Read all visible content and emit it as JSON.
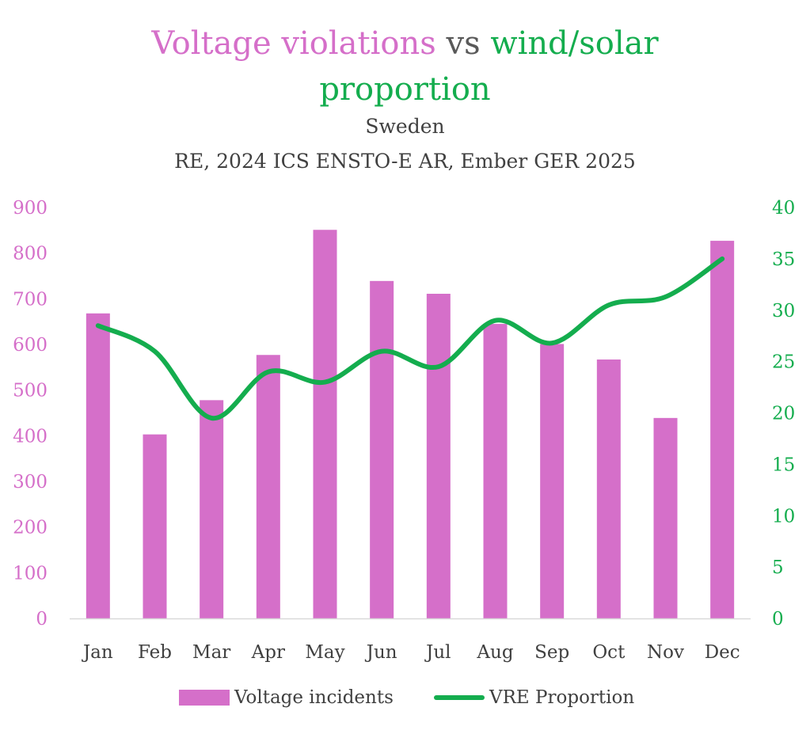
{
  "title": {
    "part1": "Voltage violations",
    "part2": "vs",
    "part3": "wind/solar",
    "part4": "proportion"
  },
  "subtitle_line1": "Sweden",
  "subtitle_line2": "RE, 2024 ICS ENSTO-E AR, Ember GER 2025",
  "colors": {
    "bar": "#d56fc9",
    "line": "#14ad4e",
    "left_axis": "#d56fc9",
    "right_axis": "#14ad4e",
    "text": "#404040"
  },
  "chart_data": {
    "type": "bar",
    "title": "Voltage violations vs wind/solar proportion",
    "categories": [
      "Jan",
      "Feb",
      "Mar",
      "Apr",
      "May",
      "Jun",
      "Jul",
      "Aug",
      "Sep",
      "Oct",
      "Nov",
      "Dec"
    ],
    "series": [
      {
        "name": "Voltage incidents",
        "type": "bar",
        "axis": "left",
        "values": [
          668,
          403,
          478,
          577,
          851,
          739,
          711,
          645,
          601,
          567,
          439,
          827
        ]
      },
      {
        "name": "VRE Proportion",
        "type": "line",
        "axis": "right",
        "values": [
          28.5,
          26,
          19.5,
          24,
          23,
          26,
          24.5,
          29,
          26.8,
          30.5,
          31.3,
          35
        ]
      }
    ],
    "left_axis": {
      "min": 0,
      "max": 900,
      "step": 100,
      "ticks": [
        "0",
        "100",
        "200",
        "300",
        "400",
        "500",
        "600",
        "700",
        "800",
        "900"
      ]
    },
    "right_axis": {
      "min": 0,
      "max": 40,
      "step": 5,
      "ticks": [
        "0",
        "5",
        "10",
        "15",
        "20",
        "25",
        "30",
        "35",
        "40"
      ]
    },
    "legend_position": "bottom",
    "grid": false
  },
  "legend": {
    "bar_label": "Voltage incidents",
    "line_label": "VRE Proportion"
  }
}
